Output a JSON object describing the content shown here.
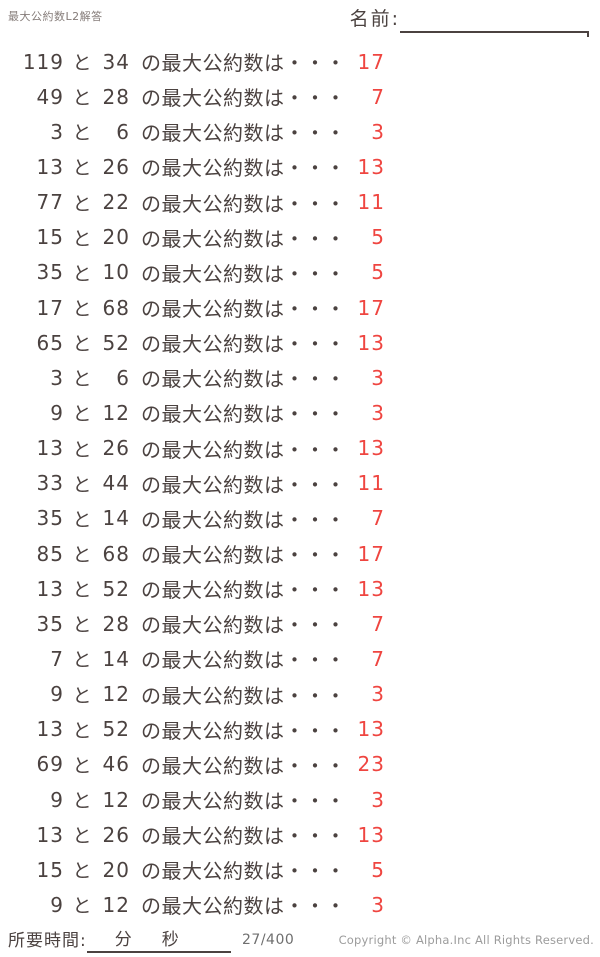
{
  "page": {
    "title": "最大公約数L2解答",
    "name_label": "名前:"
  },
  "problems": {
    "conjunction": "と",
    "question_suffix": "の最大公約数は・・・",
    "rows": [
      {
        "a": "119",
        "b": "34",
        "answer": "17"
      },
      {
        "a": "49",
        "b": "28",
        "answer": "7"
      },
      {
        "a": "3",
        "b": "6",
        "answer": "3"
      },
      {
        "a": "13",
        "b": "26",
        "answer": "13"
      },
      {
        "a": "77",
        "b": "22",
        "answer": "11"
      },
      {
        "a": "15",
        "b": "20",
        "answer": "5"
      },
      {
        "a": "35",
        "b": "10",
        "answer": "5"
      },
      {
        "a": "17",
        "b": "68",
        "answer": "17"
      },
      {
        "a": "65",
        "b": "52",
        "answer": "13"
      },
      {
        "a": "3",
        "b": "6",
        "answer": "3"
      },
      {
        "a": "9",
        "b": "12",
        "answer": "3"
      },
      {
        "a": "13",
        "b": "26",
        "answer": "13"
      },
      {
        "a": "33",
        "b": "44",
        "answer": "11"
      },
      {
        "a": "35",
        "b": "14",
        "answer": "7"
      },
      {
        "a": "85",
        "b": "68",
        "answer": "17"
      },
      {
        "a": "13",
        "b": "52",
        "answer": "13"
      },
      {
        "a": "35",
        "b": "28",
        "answer": "7"
      },
      {
        "a": "7",
        "b": "14",
        "answer": "7"
      },
      {
        "a": "9",
        "b": "12",
        "answer": "3"
      },
      {
        "a": "13",
        "b": "52",
        "answer": "13"
      },
      {
        "a": "69",
        "b": "46",
        "answer": "23"
      },
      {
        "a": "9",
        "b": "12",
        "answer": "3"
      },
      {
        "a": "13",
        "b": "26",
        "answer": "13"
      },
      {
        "a": "15",
        "b": "20",
        "answer": "5"
      },
      {
        "a": "9",
        "b": "12",
        "answer": "3"
      }
    ]
  },
  "footer": {
    "time_label": "所要時間:",
    "minutes_unit": "分",
    "seconds_unit": "秒",
    "page_indicator": "27/400",
    "copyright": "Copyright ©  Alpha.Inc All Rights Reserved."
  },
  "colors": {
    "text": "#4b4240",
    "answer_red": "#ef4540",
    "muted_gray": "#9c9c9c"
  }
}
